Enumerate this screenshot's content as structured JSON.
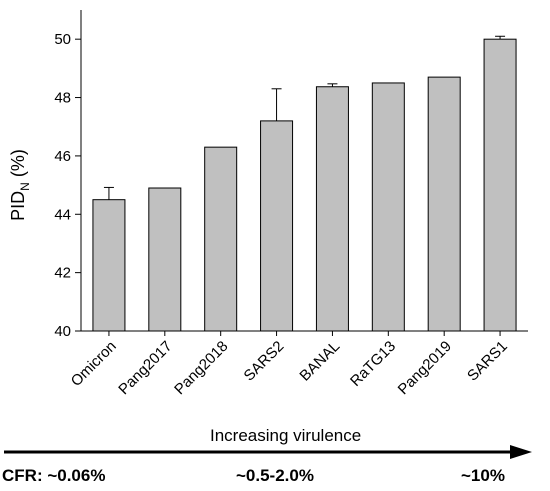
{
  "chart_data": {
    "type": "bar",
    "categories": [
      "Omicron",
      "Pang2017",
      "Pang2018",
      "SARS2",
      "BANAL",
      "RaTG13",
      "Pang2019",
      "SARS1"
    ],
    "values": [
      44.5,
      44.9,
      46.3,
      47.2,
      48.37,
      48.5,
      48.7,
      50.0
    ],
    "error_upper": [
      0.42,
      0,
      0,
      1.1,
      0.1,
      0,
      0,
      0.1
    ],
    "ylabel_main": "PID",
    "ylabel_sub": "N",
    "ylabel_unit": " (%)",
    "ylim": [
      40,
      51
    ],
    "yticks": [
      40,
      42,
      44,
      46,
      48,
      50
    ],
    "bar_color": "#c0c0c0",
    "grid": false,
    "legend": "none"
  },
  "footer": {
    "arrow_label": "Increasing virulence",
    "cfr_prefix": "CFR: ~0.06%",
    "cfr_mid": "~0.5-2.0%",
    "cfr_right": "~10%"
  }
}
